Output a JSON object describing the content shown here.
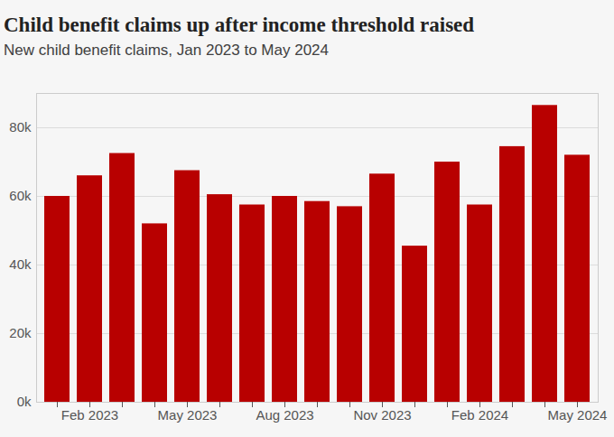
{
  "chart_data": {
    "type": "bar",
    "title": "Child benefit claims up after income threshold raised",
    "subtitle": "New child benefit claims, Jan 2023 to May 2024",
    "categories": [
      null,
      "Feb 2023",
      null,
      null,
      "May 2023",
      null,
      null,
      "Aug 2023",
      null,
      null,
      "Nov 2023",
      null,
      null,
      "Feb 2024",
      null,
      null,
      "May 2024"
    ],
    "values": [
      60000,
      66000,
      72500,
      52000,
      67500,
      60500,
      57500,
      60000,
      58500,
      57000,
      66500,
      45500,
      70000,
      57500,
      74500,
      86500,
      72000
    ],
    "color": "#b80000",
    "ylim": [
      0,
      90000
    ],
    "yticks": [
      {
        "value": 0,
        "label": "0k"
      },
      {
        "value": 20000,
        "label": "20k"
      },
      {
        "value": 40000,
        "label": "40k"
      },
      {
        "value": 60000,
        "label": "60k"
      },
      {
        "value": 80000,
        "label": "80k"
      }
    ],
    "grid": true
  }
}
